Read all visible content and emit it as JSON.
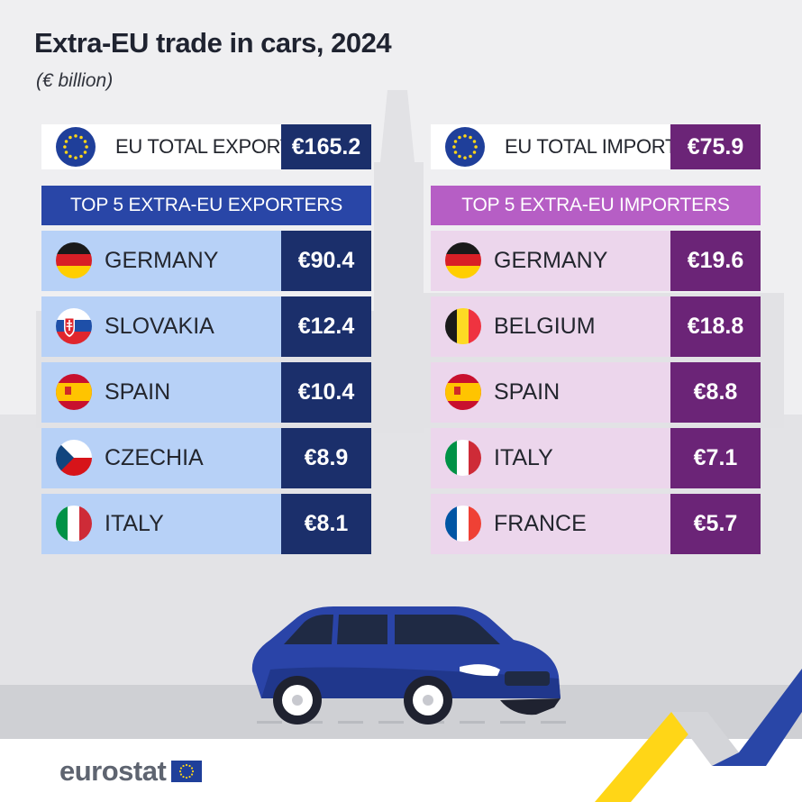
{
  "chart_data": {
    "type": "table",
    "title": "Extra-EU trade in cars, 2024",
    "subtitle": "(€ billion)",
    "exports": {
      "total_label": "EU TOTAL EXPORTS",
      "total_value": "€165.2",
      "header": "TOP 5 EXTRA-EU EXPORTERS",
      "rows": [
        {
          "country": "GERMANY",
          "value": "€90.4",
          "flag": "germany"
        },
        {
          "country": "SLOVAKIA",
          "value": "€12.4",
          "flag": "slovakia"
        },
        {
          "country": "SPAIN",
          "value": "€10.4",
          "flag": "spain"
        },
        {
          "country": "CZECHIA",
          "value": "€8.9",
          "flag": "czechia"
        },
        {
          "country": "ITALY",
          "value": "€8.1",
          "flag": "italy"
        }
      ]
    },
    "imports": {
      "total_label": "EU TOTAL IMPORTS",
      "total_value": "€75.9",
      "header": "TOP 5 EXTRA-EU IMPORTERS",
      "rows": [
        {
          "country": "GERMANY",
          "value": "€19.6",
          "flag": "germany"
        },
        {
          "country": "BELGIUM",
          "value": "€18.8",
          "flag": "belgium"
        },
        {
          "country": "SPAIN",
          "value": "€8.8",
          "flag": "spain"
        },
        {
          "country": "ITALY",
          "value": "€7.1",
          "flag": "italy"
        },
        {
          "country": "FRANCE",
          "value": "€5.7",
          "flag": "france"
        }
      ]
    }
  },
  "branding": {
    "logo_text": "eurostat",
    "logo_icon": "eu-flag-icon"
  },
  "colors": {
    "export_dark": "#1b2f6b",
    "export_header": "#2946a7",
    "export_row": "#b7d1f7",
    "import_dark": "#6b2477",
    "import_header": "#b65ec5",
    "import_row": "#ecd6ec",
    "car_body": "#2a44a8"
  }
}
